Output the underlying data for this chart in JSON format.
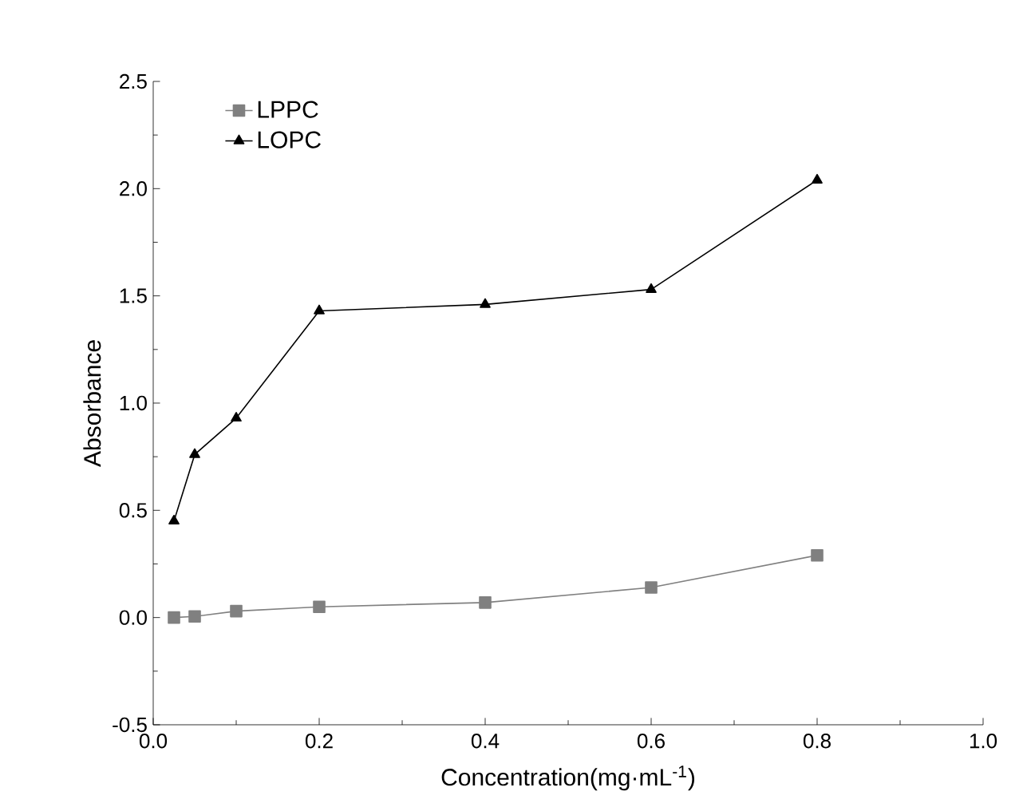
{
  "chart_data": {
    "type": "line",
    "xlabel": "Concentration(mg·mL$^{-1}$)",
    "ylabel": "Absorbance",
    "x": [
      0.025,
      0.05,
      0.1,
      0.2,
      0.4,
      0.6,
      0.8
    ],
    "series": [
      {
        "name": "LPPC",
        "color": "#808080",
        "marker": "square",
        "values": [
          0.0,
          0.005,
          0.03,
          0.05,
          0.07,
          0.14,
          0.29
        ]
      },
      {
        "name": "LOPC",
        "color": "#000000",
        "marker": "triangle",
        "values": [
          0.45,
          0.76,
          0.93,
          1.43,
          1.46,
          1.53,
          2.04
        ]
      }
    ],
    "xlim": [
      0.0,
      1.0
    ],
    "xticks": [
      {
        "value": 0.0,
        "label": "0.0"
      },
      0.2,
      0.4,
      0.6,
      0.8,
      {
        "value": 1.0,
        "label": "1.0"
      }
    ],
    "ylim": [
      -0.5,
      2.5
    ],
    "yticks": [
      -0.5,
      {
        "value": 0.0,
        "label": "0.0"
      },
      0.5,
      {
        "value": 1.0,
        "label": "1.0"
      },
      1.5,
      {
        "value": 2.0,
        "label": "2.0"
      },
      2.5
    ],
    "legend": "top left",
    "grid": false,
    "line_style": "solid"
  }
}
